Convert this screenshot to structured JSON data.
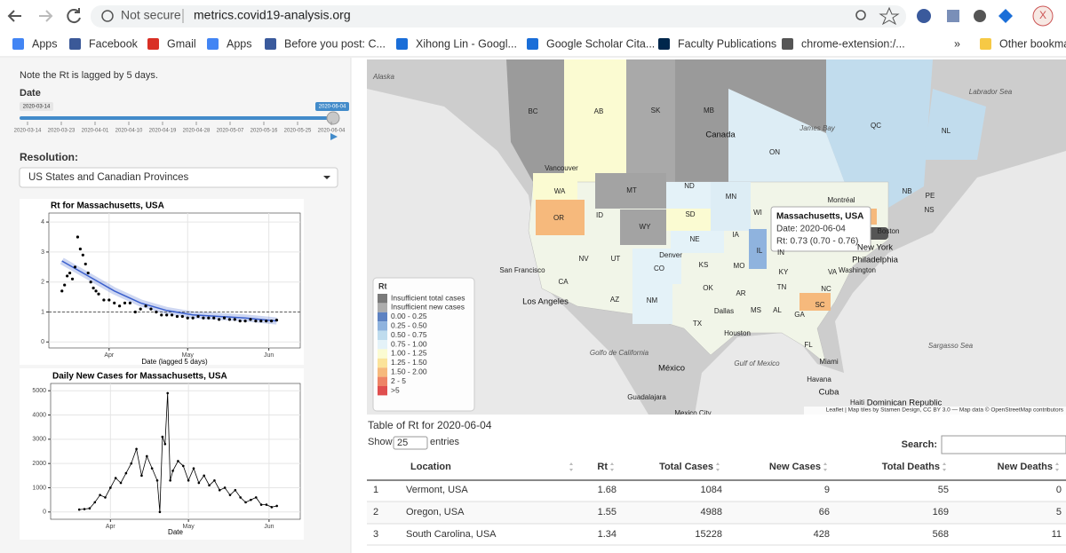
{
  "browser": {
    "security": "Not secure",
    "url": "metrics.covid19-analysis.org",
    "avatar": "X",
    "bookmarks": [
      "Apps",
      "Facebook",
      "Gmail",
      "Apps",
      "Before you post: C...",
      "Xihong Lin - Googl...",
      "Google Scholar Cita...",
      "Faculty Publications",
      "chrome-extension:/...",
      "»",
      "Other bookma"
    ]
  },
  "sidebar": {
    "note": "Note the Rt is lagged by 5 days.",
    "date_label": "Date",
    "slider": {
      "min": "2020-03-14",
      "value": "2020-06-04",
      "ticks": [
        "2020-03-14",
        "2020-03-23",
        "2020-04-01",
        "2020-04-10",
        "2020-04-19",
        "2020-04-28",
        "2020-05-07",
        "2020-05-16",
        "2020-05-25",
        "2020-06-04"
      ]
    },
    "resolution_label": "Resolution:",
    "resolution": "US States and Canadian Provinces"
  },
  "rt_chart": {
    "type": "scatter",
    "title": "Rt for Massachusetts, USA",
    "x_label": "Date (lagged 5 days)",
    "x": [
      0,
      1,
      2,
      3,
      4,
      5,
      6,
      7,
      8,
      9,
      10,
      11,
      12,
      13,
      14,
      16,
      18,
      20,
      22,
      24,
      26,
      28,
      30,
      32,
      34,
      36,
      38,
      40,
      42,
      44,
      46,
      48,
      50,
      52,
      54,
      56,
      58,
      60,
      62,
      64,
      66,
      68,
      70,
      72,
      74,
      76,
      78,
      80,
      82
    ],
    "values": [
      1.7,
      1.9,
      2.2,
      2.3,
      2.1,
      2.5,
      3.5,
      3.1,
      2.9,
      2.6,
      2.3,
      2.0,
      1.8,
      1.7,
      1.6,
      1.4,
      1.4,
      1.3,
      1.2,
      1.3,
      1.3,
      1.0,
      1.1,
      1.2,
      1.1,
      1.0,
      0.9,
      0.9,
      0.9,
      0.85,
      0.85,
      0.8,
      0.8,
      0.85,
      0.8,
      0.8,
      0.8,
      0.75,
      0.8,
      0.75,
      0.75,
      0.7,
      0.7,
      0.75,
      0.7,
      0.7,
      0.7,
      0.7,
      0.73
    ],
    "trend": {
      "x": [
        0,
        10,
        20,
        30,
        40,
        50,
        60,
        70,
        82
      ],
      "values": [
        2.7,
        2.2,
        1.7,
        1.3,
        1.05,
        0.9,
        0.85,
        0.8,
        0.7
      ]
    },
    "ref_line": 1,
    "color": "#000000",
    "trend_color": "#3a5fcd",
    "xlim": [
      -5,
      91
    ],
    "ylim": [
      -0.2,
      4.3
    ],
    "xticks": [
      {
        "value": 18,
        "label": "Apr"
      },
      {
        "value": 48,
        "label": "May"
      },
      {
        "value": 79,
        "label": "Jun"
      }
    ],
    "yticks": [
      0,
      1,
      2,
      3,
      4
    ],
    "grid": true
  },
  "cases_chart": {
    "type": "line",
    "title": "Daily New Cases for Massachusetts, USA",
    "x_label": "Date",
    "x": [
      6,
      8,
      10,
      12,
      14,
      16,
      18,
      20,
      22,
      24,
      26,
      28,
      30,
      32,
      34,
      36,
      37,
      38,
      39,
      40,
      41,
      42,
      44,
      46,
      48,
      50,
      52,
      54,
      56,
      58,
      60,
      62,
      64,
      66,
      68,
      70,
      72,
      74,
      76,
      78,
      80,
      82
    ],
    "values": [
      100,
      120,
      150,
      400,
      700,
      600,
      1000,
      1400,
      1200,
      1600,
      2000,
      2600,
      1500,
      2300,
      1800,
      1300,
      0,
      3100,
      2800,
      4900,
      1300,
      1700,
      2100,
      1900,
      1300,
      1800,
      1200,
      1500,
      1100,
      1300,
      900,
      1000,
      700,
      900,
      600,
      400,
      500,
      600,
      300,
      300,
      200,
      250
    ],
    "color": "#000000",
    "xlim": [
      -5,
      91
    ],
    "ylim": [
      -300,
      5300
    ],
    "xticks": [
      {
        "value": 18,
        "label": "Apr"
      },
      {
        "value": 48,
        "label": "May"
      },
      {
        "value": 79,
        "label": "Jun"
      }
    ],
    "yticks": [
      0,
      1000,
      2000,
      3000,
      4000,
      5000
    ],
    "grid": true
  },
  "map": {
    "labels": [
      "Alaska",
      "BC",
      "AB",
      "SK",
      "MB",
      "Canada",
      "James Bay",
      "QC",
      "NL",
      "Labrador Sea",
      "ON",
      "Vancouver",
      "WA",
      "MT",
      "ND",
      "MN",
      "Montréal",
      "NB",
      "PE",
      "NS",
      "OR",
      "ID",
      "SD",
      "WI",
      "WY",
      "NE",
      "IA",
      "NV",
      "UT",
      "Denver",
      "CO",
      "KS",
      "MO",
      "IL",
      "IN",
      "New York",
      "Philadelphia",
      "Washington",
      "San Francisco",
      "CA",
      "KY",
      "VA",
      "OK",
      "TN",
      "NC",
      "AR",
      "Los Angeles",
      "AZ",
      "NM",
      "SC",
      "Dallas",
      "MS",
      "AL",
      "GA",
      "TX",
      "Houston",
      "FL",
      "Sargasso Sea",
      "Golfo de California",
      "Gulf of Mexico",
      "Miami",
      "México",
      "Havana",
      "Cuba",
      "Haiti",
      "Dominican Republic",
      "Guadalajara",
      "Mexico City",
      "Boston"
    ],
    "tooltip": {
      "title": "Massachusetts, USA",
      "date": "Date: 2020-06-04",
      "rt": "Rt: 0.73 (0.70 - 0.76)"
    },
    "legend": {
      "title": "Rt",
      "items": [
        {
          "label": "Insufficient total cases",
          "color": "#7a7a7a"
        },
        {
          "label": "Insufficient new cases",
          "color": "#adadad"
        },
        {
          "label": "0.00 - 0.25",
          "color": "#5d82c2"
        },
        {
          "label": "0.25 - 0.50",
          "color": "#8fb3de"
        },
        {
          "label": "0.50 - 0.75",
          "color": "#bfdcee"
        },
        {
          "label": "0.75 - 1.00",
          "color": "#e4f2f8"
        },
        {
          "label": "1.00 - 1.25",
          "color": "#fbfbd2"
        },
        {
          "label": "1.25 - 1.50",
          "color": "#fbe39a"
        },
        {
          "label": "1.50 - 2.00",
          "color": "#f6b97c"
        },
        {
          "label": "2 - 5",
          "color": "#ee8466"
        },
        {
          "label": ">5",
          "color": "#e04f4f"
        }
      ]
    },
    "attribution": "Leaflet | Map tiles by Stamen Design, CC BY 3.0 — Map data © OpenStreetMap contributors"
  },
  "table": {
    "title": "Table of Rt for 2020-06-04",
    "show": "Show",
    "length": "25",
    "entries": "entries",
    "search": "Search:",
    "columns": [
      "Location",
      "Rt",
      "Total Cases",
      "New Cases",
      "Total Deaths",
      "New Deaths"
    ],
    "rows": [
      [
        1,
        "Vermont, USA",
        1.68,
        1084,
        9,
        55,
        0
      ],
      [
        2,
        "Oregon, USA",
        1.55,
        4988,
        66,
        169,
        5
      ],
      [
        3,
        "South Carolina, USA",
        1.34,
        15228,
        428,
        568,
        11
      ]
    ]
  }
}
